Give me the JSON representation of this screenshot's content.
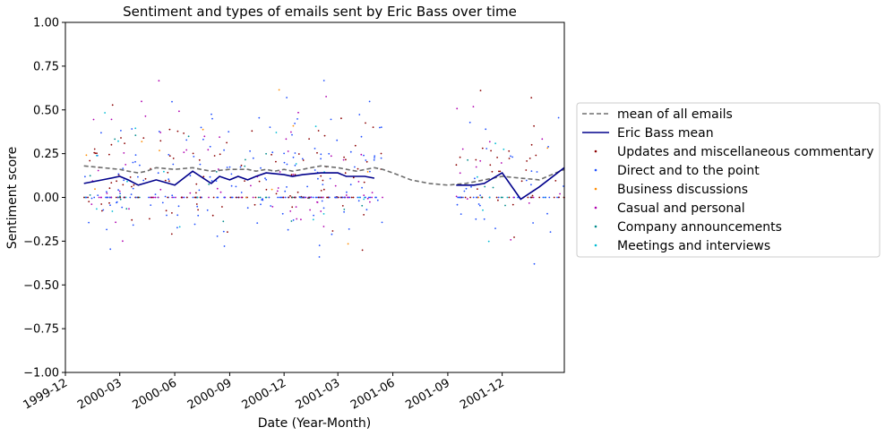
{
  "chart_data": {
    "type": "scatter",
    "title": "Sentiment and types of emails sent by Eric Bass over time",
    "xlabel": "Date (Year-Month)",
    "ylabel": "Sentiment score",
    "xlim": [
      "1999-12-01",
      "2002-03-15"
    ],
    "ylim": [
      -1.0,
      1.0
    ],
    "x_ticks": [
      "1999-12",
      "2000-03",
      "2000-06",
      "2000-09",
      "2000-12",
      "2001-03",
      "2001-06",
      "2001-09",
      "2001-12"
    ],
    "y_ticks": [
      "−1.00",
      "−0.75",
      "−0.50",
      "−0.25",
      "0.00",
      "0.25",
      "0.50",
      "0.75",
      "1.00"
    ],
    "grid": false,
    "legend_position": "right",
    "lines": [
      {
        "name": "mean of all emails",
        "style": "dashed",
        "color": "#6e6e6e",
        "points": [
          [
            "2000-01-01",
            0.18
          ],
          [
            "2000-02-01",
            0.17
          ],
          [
            "2000-03-01",
            0.16
          ],
          [
            "2000-03-15",
            0.15
          ],
          [
            "2000-04-01",
            0.14
          ],
          [
            "2000-04-15",
            0.15
          ],
          [
            "2000-05-01",
            0.17
          ],
          [
            "2000-06-01",
            0.16
          ],
          [
            "2000-07-01",
            0.17
          ],
          [
            "2000-07-15",
            0.16
          ],
          [
            "2000-08-01",
            0.15
          ],
          [
            "2000-09-01",
            0.16
          ],
          [
            "2000-10-01",
            0.16
          ],
          [
            "2000-10-15",
            0.15
          ],
          [
            "2000-11-01",
            0.16
          ],
          [
            "2000-11-15",
            0.15
          ],
          [
            "2000-12-01",
            0.16
          ],
          [
            "2000-12-15",
            0.15
          ],
          [
            "2001-01-01",
            0.16
          ],
          [
            "2001-01-15",
            0.17
          ],
          [
            "2001-02-01",
            0.18
          ],
          [
            "2001-03-01",
            0.17
          ],
          [
            "2001-04-01",
            0.15
          ],
          [
            "2001-05-01",
            0.17
          ],
          [
            "2001-05-15",
            0.16
          ],
          [
            "2001-06-01",
            0.14
          ],
          [
            "2001-07-01",
            0.1
          ],
          [
            "2001-08-01",
            0.08
          ],
          [
            "2001-09-01",
            0.07
          ],
          [
            "2001-10-01",
            0.08
          ],
          [
            "2001-11-01",
            0.1
          ],
          [
            "2001-12-01",
            0.12
          ],
          [
            "2002-01-01",
            0.11
          ],
          [
            "2002-02-01",
            0.1
          ],
          [
            "2002-03-15",
            0.16
          ]
        ]
      },
      {
        "name": "Eric Bass mean",
        "style": "solid",
        "color": "#00008b",
        "segments": [
          [
            [
              "2000-01-01",
              0.08
            ],
            [
              "2000-02-01",
              0.1
            ],
            [
              "2000-03-01",
              0.12
            ],
            [
              "2000-03-15",
              0.1
            ],
            [
              "2000-04-01",
              0.07
            ],
            [
              "2000-05-01",
              0.1
            ],
            [
              "2000-06-01",
              0.07
            ],
            [
              "2000-07-01",
              0.15
            ],
            [
              "2000-08-01",
              0.08
            ],
            [
              "2000-08-15",
              0.12
            ],
            [
              "2000-09-01",
              0.1
            ],
            [
              "2000-09-15",
              0.12
            ],
            [
              "2000-10-01",
              0.1
            ],
            [
              "2000-10-15",
              0.12
            ],
            [
              "2000-11-01",
              0.14
            ],
            [
              "2000-12-01",
              0.13
            ],
            [
              "2000-12-15",
              0.12
            ],
            [
              "2001-01-01",
              0.13
            ],
            [
              "2001-02-01",
              0.14
            ],
            [
              "2001-03-01",
              0.14
            ],
            [
              "2001-03-15",
              0.12
            ],
            [
              "2001-04-15",
              0.12
            ],
            [
              "2001-05-01",
              0.11
            ]
          ],
          [
            [
              "2001-09-15",
              0.07
            ],
            [
              "2001-10-15",
              0.07
            ],
            [
              "2001-11-01",
              0.08
            ],
            [
              "2001-12-01",
              0.14
            ],
            [
              "2002-01-01",
              -0.01
            ],
            [
              "2002-02-01",
              0.06
            ],
            [
              "2002-03-15",
              0.17
            ]
          ]
        ]
      }
    ],
    "series": [
      {
        "name": "Updates and miscellaneous commentary",
        "color": "#8b0000"
      },
      {
        "name": "Direct and to the point",
        "color": "#1f4fff"
      },
      {
        "name": "Business discussions",
        "color": "#ff8c00"
      },
      {
        "name": "Casual and personal",
        "color": "#b000b0"
      },
      {
        "name": "Company announcements",
        "color": "#008b8b"
      },
      {
        "name": "Meetings and interviews",
        "color": "#00bcd4"
      }
    ],
    "scatter_clusters": [
      {
        "from": "2000-01-01",
        "to": "2001-05-15",
        "count": 520,
        "spread": 0.28
      },
      {
        "from": "2001-09-15",
        "to": "2002-03-15",
        "count": 130,
        "spread": 0.28
      }
    ]
  }
}
